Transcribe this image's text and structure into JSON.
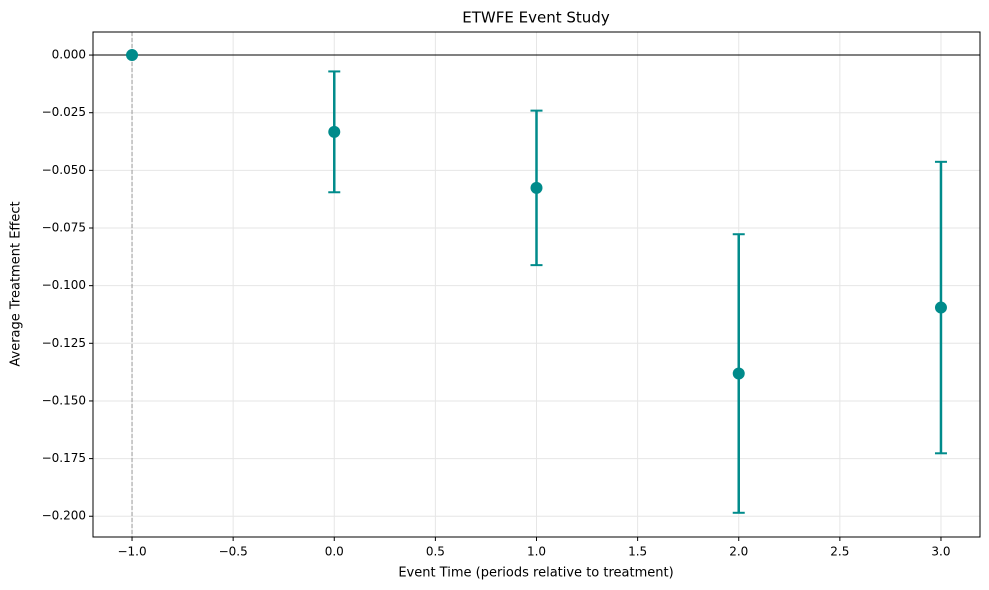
{
  "chart_data": {
    "type": "errorbar",
    "title": "ETWFE Event Study",
    "x_label": "Event Time (periods relative to treatment)",
    "y_label": "Average Treatment Effect",
    "x": [
      -1,
      0,
      1,
      2,
      3
    ],
    "values": [
      0,
      -0.0333,
      -0.0576,
      -0.1381,
      -0.1095
    ],
    "errors": [
      0,
      0.0262,
      0.0335,
      0.0604,
      0.0632
    ],
    "color": "#008b8b",
    "xlim": [
      -1.193,
      3.193
    ],
    "ylim": [
      -0.209,
      0.01
    ],
    "xticks": [
      {
        "value": -1,
        "label": "−1.0"
      },
      {
        "value": -0.5,
        "label": "−0.5"
      },
      {
        "value": 0,
        "label": "0.0"
      },
      0.5,
      {
        "value": 1,
        "label": "1.0"
      },
      1.5,
      {
        "value": 2,
        "label": "2.0"
      },
      2.5,
      {
        "value": 3,
        "label": "3.0"
      }
    ],
    "yticks": [
      {
        "value": 0,
        "label": "0.000"
      },
      {
        "value": -0.025,
        "label": "−0.025"
      },
      {
        "value": -0.05,
        "label": "−0.050"
      },
      {
        "value": -0.075,
        "label": "−0.075"
      },
      {
        "value": -0.1,
        "label": "−0.100"
      },
      {
        "value": -0.125,
        "label": "−0.125"
      },
      {
        "value": -0.15,
        "label": "−0.150"
      },
      {
        "value": -0.175,
        "label": "−0.175"
      },
      {
        "value": -0.2,
        "label": "−0.200"
      }
    ],
    "hline": 0,
    "vline": -1,
    "grid": true
  }
}
